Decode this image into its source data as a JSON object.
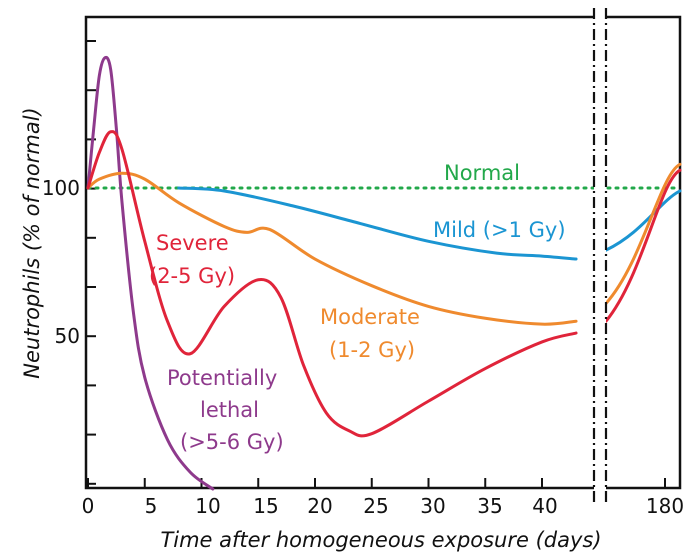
{
  "chart_data": {
    "type": "line",
    "title": "",
    "xlabel": "Time after homogeneous exposure (days)",
    "ylabel": "Neutrophils (% of normal)",
    "x_tick_labels": [
      "0",
      "5",
      "10",
      "15",
      "20",
      "25",
      "30",
      "35",
      "40",
      "180"
    ],
    "y_tick_labels": [
      "100",
      "50"
    ],
    "xlim": [
      0,
      45
    ],
    "x_axis_break": "between 40 and 180 (dash-dot double break)",
    "ylim": [
      -4,
      150
    ],
    "grid": false,
    "colors": {
      "normal": "#22a84a",
      "mild": "#1b95d2",
      "moderate": "#ef8a2e",
      "severe": "#e0243a",
      "lethal": "#8e3a8c",
      "axis": "#111111"
    },
    "annotations": {
      "normal": "Normal",
      "mild": "Mild (>1 Gy)",
      "moderate_1": "Moderate",
      "moderate_2": "(1-2 Gy)",
      "severe_1": "Severe",
      "severe_2": "(2-5 Gy)",
      "lethal_1": "Potentially",
      "lethal_2": "lethal",
      "lethal_3": "(>5-6 Gy)"
    },
    "series": [
      {
        "key": "normal",
        "x": [
          0,
          45
        ],
        "y": [
          100,
          100
        ],
        "post_break": {
          "x": [
            180,
            180
          ],
          "y": [
            100,
            100
          ]
        }
      },
      {
        "key": "mild",
        "x": [
          8,
          12,
          18,
          24,
          30,
          36,
          40,
          43
        ],
        "y": [
          100,
          99,
          94,
          88,
          82,
          78,
          77,
          76
        ],
        "post_break": {
          "y_start": 79,
          "y_end": 99
        }
      },
      {
        "key": "moderate",
        "x": [
          0,
          1,
          3,
          5,
          8,
          12,
          14,
          16,
          20,
          25,
          30,
          35,
          40,
          43
        ],
        "y": [
          100,
          103,
          105,
          103,
          95,
          87,
          85,
          86,
          76,
          67,
          60,
          56,
          54,
          55
        ],
        "post_break": {
          "y_start": 61,
          "y_end": 108
        }
      },
      {
        "key": "severe",
        "x": [
          0,
          1,
          2,
          3,
          5,
          7,
          9,
          12,
          15,
          17,
          19,
          21,
          23,
          25,
          30,
          35,
          40,
          43
        ],
        "y": [
          100,
          112,
          119,
          113,
          82,
          55,
          44,
          60,
          69,
          63,
          40,
          24,
          18,
          17,
          28,
          39,
          48,
          51
        ],
        "post_break": {
          "y_start": 55,
          "y_end": 106
        }
      },
      {
        "key": "lethal",
        "x": [
          0,
          0.5,
          1,
          1.5,
          2,
          2.5,
          3,
          4,
          5,
          7,
          9,
          11
        ],
        "y": [
          100,
          120,
          138,
          144,
          140,
          120,
          95,
          58,
          36,
          15,
          4,
          -4
        ]
      }
    ]
  }
}
